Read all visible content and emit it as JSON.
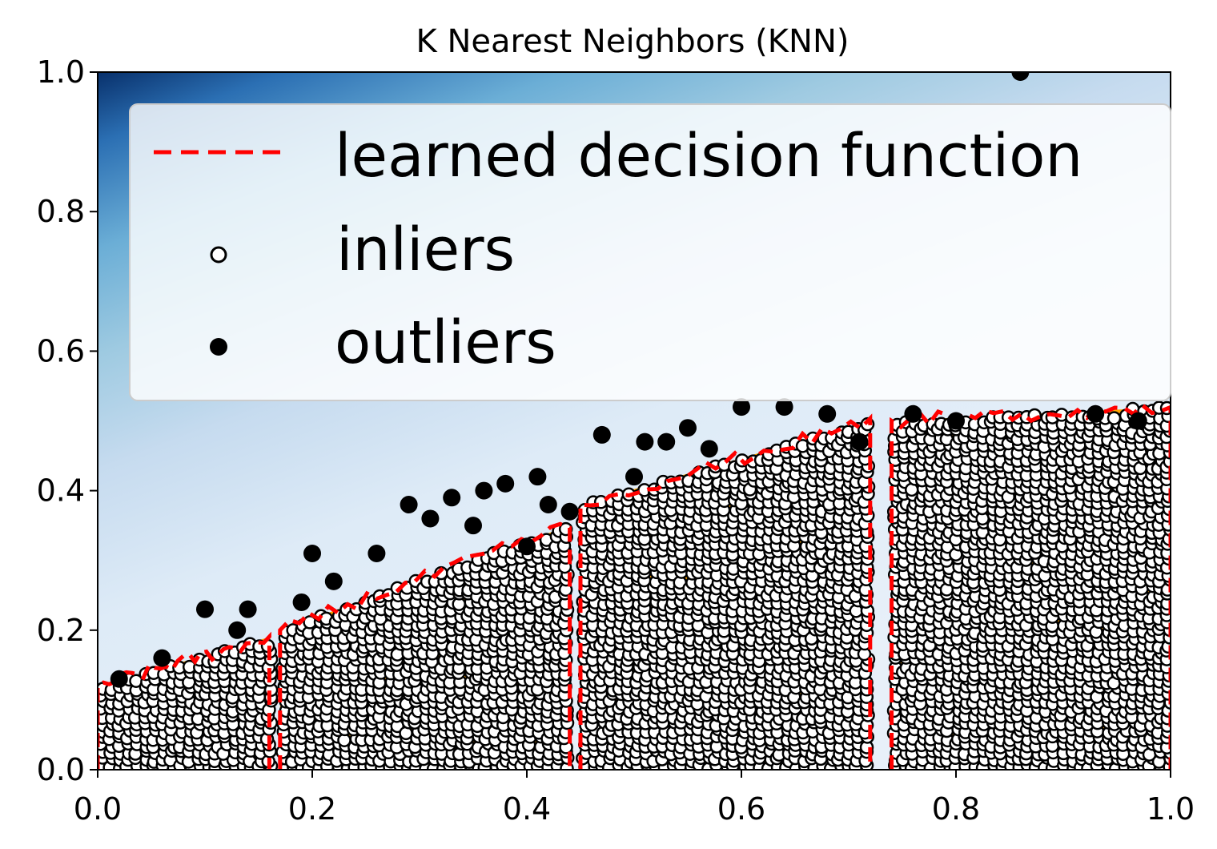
{
  "chart_data": {
    "type": "scatter",
    "title": "K Nearest Neighbors (KNN)",
    "xlabel": "",
    "ylabel": "",
    "xlim": [
      0.0,
      1.0
    ],
    "ylim": [
      0.0,
      1.0
    ],
    "xticks": [
      "0.0",
      "0.2",
      "0.4",
      "0.6",
      "0.8",
      "1.0"
    ],
    "yticks": [
      "0.0",
      "0.2",
      "0.4",
      "0.6",
      "0.8",
      "1.0"
    ],
    "grid": false,
    "legend_position": "top-right",
    "legend": [
      {
        "name": "learned decision function",
        "marker": "red-dashed-line"
      },
      {
        "name": "inliers",
        "marker": "white-circle-black-edge"
      },
      {
        "name": "outliers",
        "marker": "black-circle"
      }
    ],
    "colors": {
      "decision_function_line": "#ff0000",
      "inliers_fill": "#ffffff",
      "inliers_edge": "#000000",
      "outliers": "#000000",
      "threshold_fill": "#ffa500",
      "background_low": "#08306b",
      "background_high": "#deebf7"
    },
    "series": [
      {
        "name": "inliers",
        "description": "dense band of points under stepped boundary",
        "clusters": [
          {
            "x": [
              0.0,
              0.16
            ],
            "y_top": [
              0.12,
              0.19
            ]
          },
          {
            "x": [
              0.17,
              0.44
            ],
            "y_top": [
              0.2,
              0.35
            ]
          },
          {
            "x": [
              0.45,
              0.72
            ],
            "y_top": [
              0.38,
              0.5
            ]
          },
          {
            "x": [
              0.74,
              1.0
            ],
            "y_top": [
              0.5,
              0.52
            ]
          }
        ]
      },
      {
        "name": "outliers",
        "points": [
          [
            0.02,
            0.13
          ],
          [
            0.06,
            0.16
          ],
          [
            0.1,
            0.23
          ],
          [
            0.13,
            0.2
          ],
          [
            0.14,
            0.23
          ],
          [
            0.2,
            0.31
          ],
          [
            0.19,
            0.24
          ],
          [
            0.22,
            0.27
          ],
          [
            0.26,
            0.31
          ],
          [
            0.29,
            0.38
          ],
          [
            0.31,
            0.36
          ],
          [
            0.33,
            0.39
          ],
          [
            0.36,
            0.4
          ],
          [
            0.38,
            0.41
          ],
          [
            0.41,
            0.42
          ],
          [
            0.42,
            0.38
          ],
          [
            0.47,
            0.48
          ],
          [
            0.51,
            0.47
          ],
          [
            0.53,
            0.47
          ],
          [
            0.55,
            0.49
          ],
          [
            0.57,
            0.46
          ],
          [
            0.6,
            0.52
          ],
          [
            0.64,
            0.52
          ],
          [
            0.68,
            0.51
          ],
          [
            0.71,
            0.47
          ],
          [
            0.76,
            0.51
          ],
          [
            0.8,
            0.5
          ],
          [
            0.86,
            1.0
          ],
          [
            0.93,
            0.51
          ],
          [
            0.97,
            0.5
          ],
          [
            0.4,
            0.32
          ],
          [
            0.44,
            0.37
          ],
          [
            0.5,
            0.42
          ],
          [
            0.35,
            0.35
          ]
        ]
      }
    ]
  }
}
